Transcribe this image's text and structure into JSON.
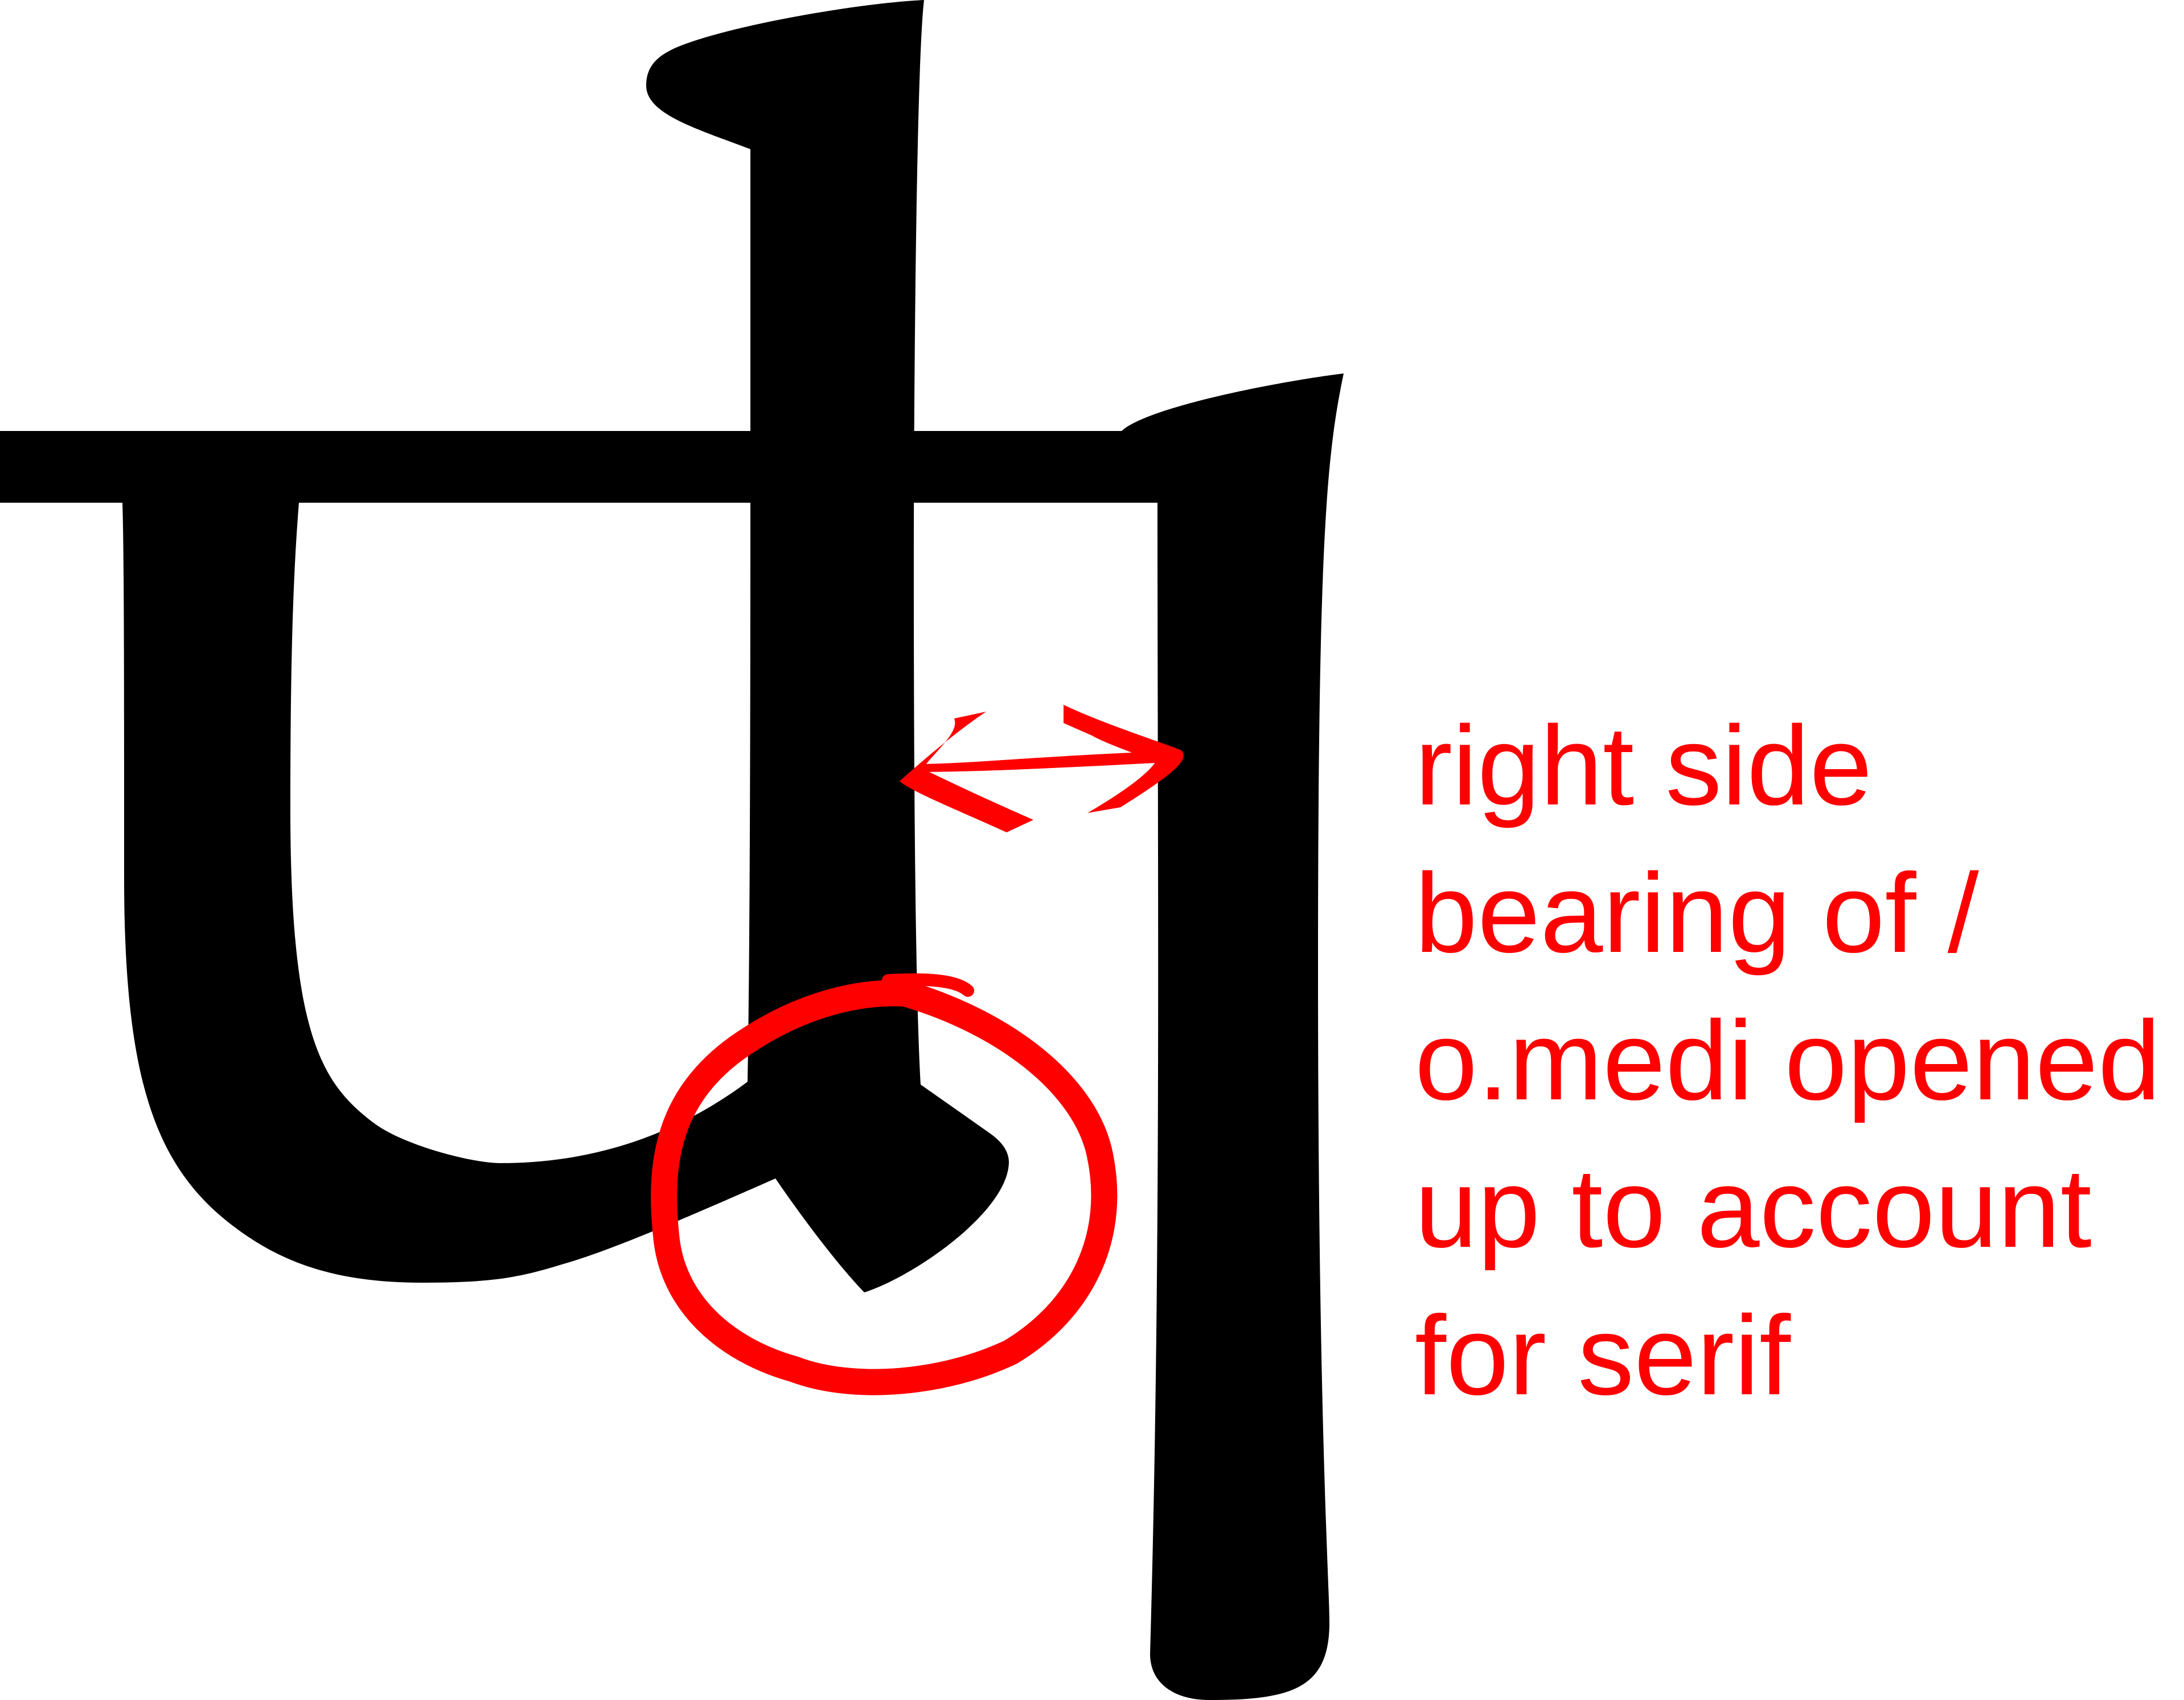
{
  "colors": {
    "glyph": "#000000",
    "annotation": "#ff0000",
    "background": "#ffffff"
  },
  "annotation": {
    "lines": [
      "right side",
      "bearing of /",
      "o.medi opened",
      "up to account",
      "for serif"
    ]
  },
  "marks": {
    "arrow": "double-headed-arrow",
    "circle": "hand-drawn-circle"
  }
}
